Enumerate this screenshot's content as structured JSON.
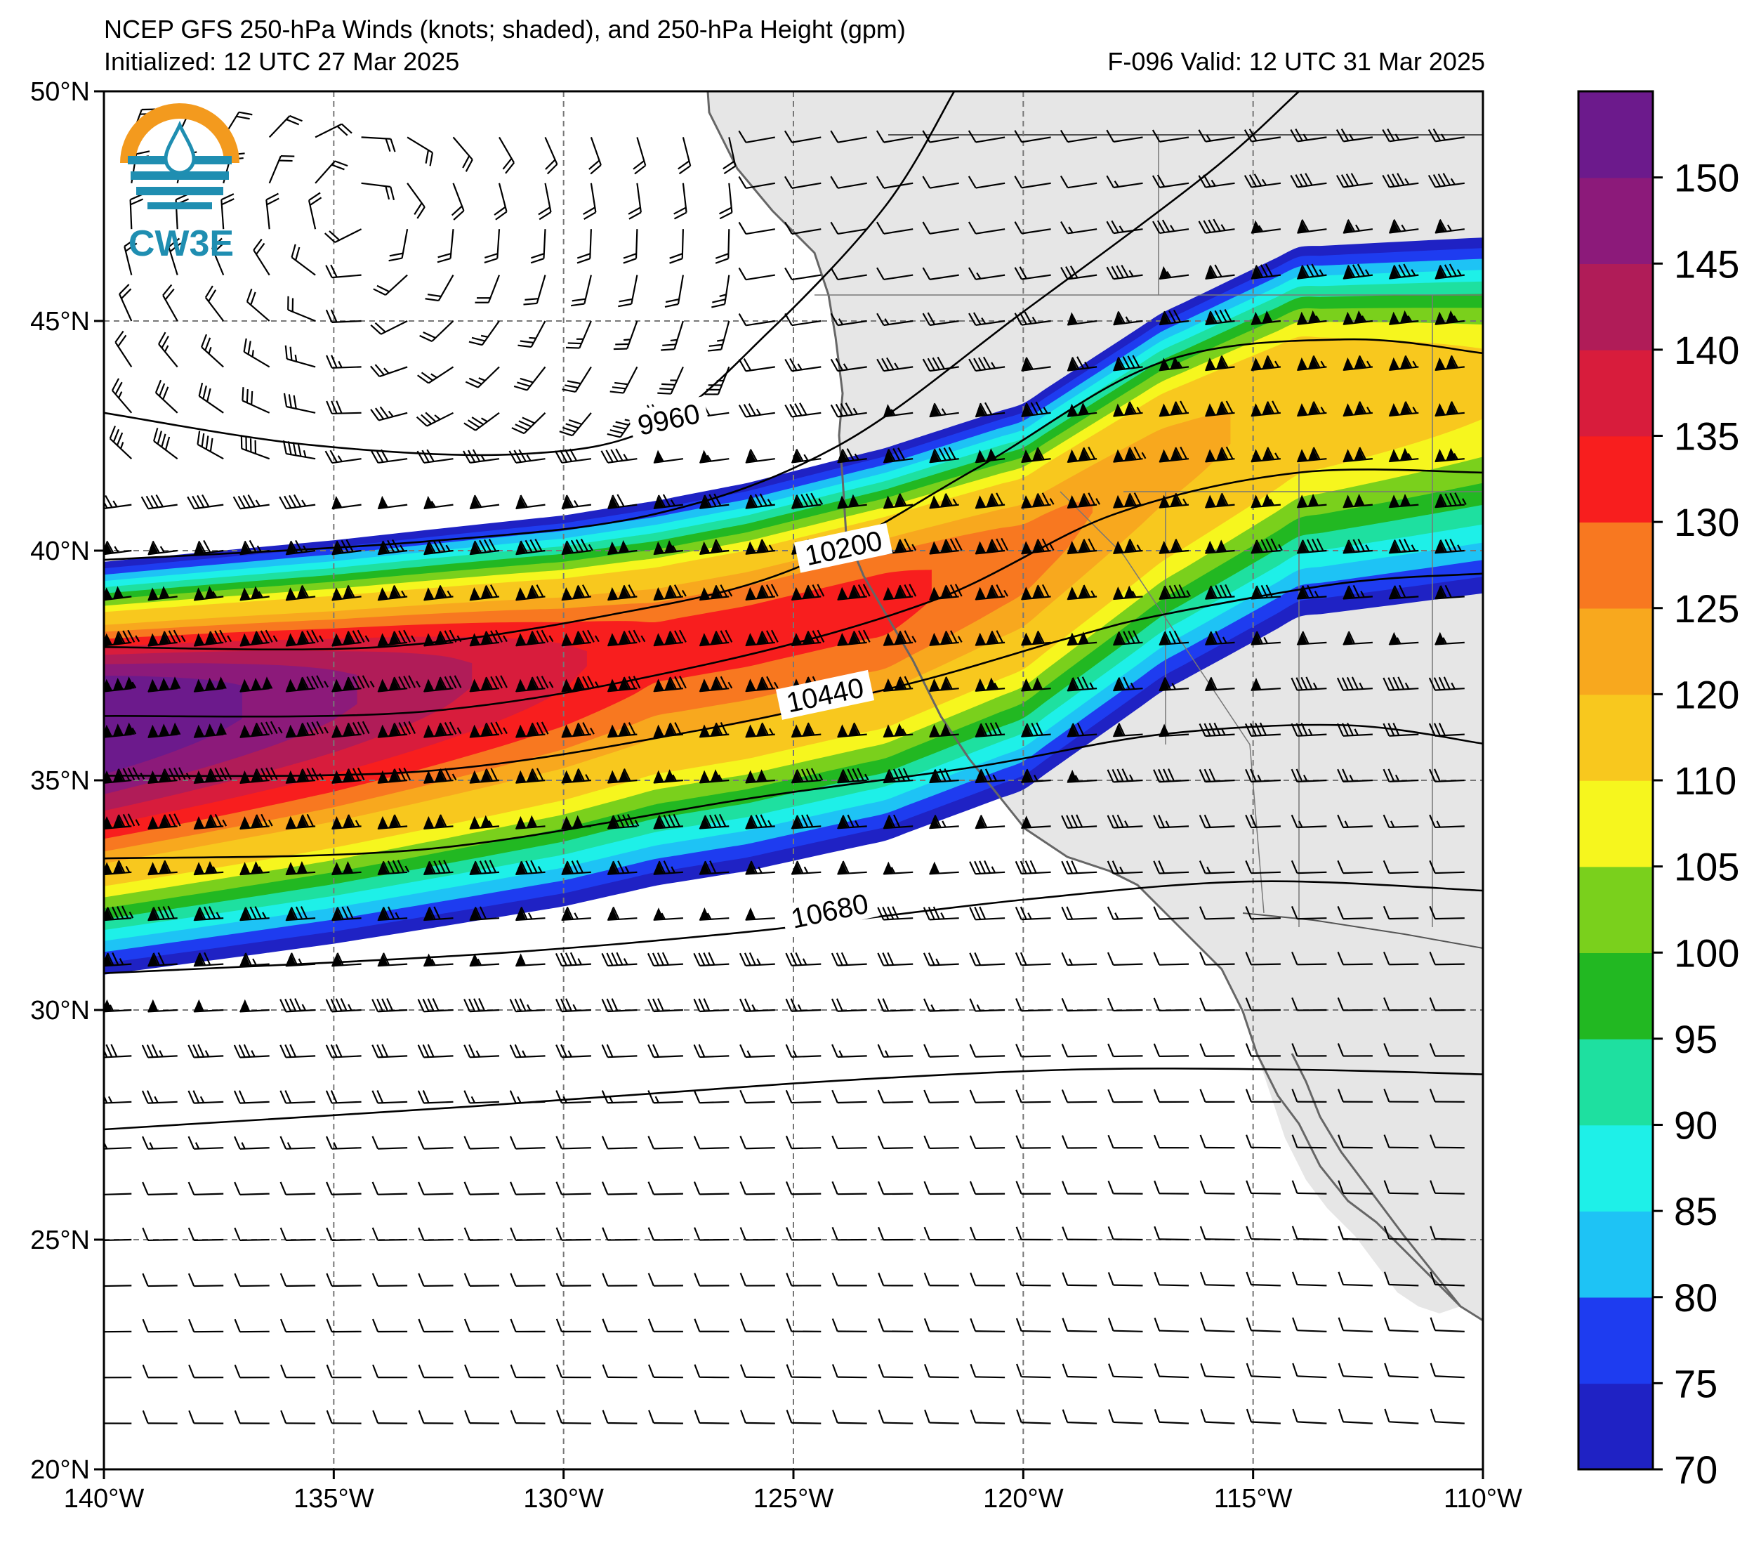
{
  "title": {
    "line1": "NCEP GFS 250-hPa Winds (knots; shaded), and 250-hPa Height (gpm)",
    "initialized": "Initialized: 12 UTC 27 Mar 2025",
    "valid": "F-096  Valid: 12 UTC 31 Mar 2025"
  },
  "logo": {
    "text": "CW3E"
  },
  "map": {
    "lon_range": [
      -140,
      -110
    ],
    "lat_range": [
      20,
      50
    ],
    "lon_ticks": [
      {
        "v": -140,
        "label": "140°W"
      },
      {
        "v": -135,
        "label": "135°W"
      },
      {
        "v": -130,
        "label": "130°W"
      },
      {
        "v": -125,
        "label": "125°W"
      },
      {
        "v": -120,
        "label": "120°W"
      },
      {
        "v": -115,
        "label": "115°W"
      },
      {
        "v": -110,
        "label": "110°W"
      }
    ],
    "lat_ticks": [
      {
        "v": 50,
        "label": "50°N"
      },
      {
        "v": 45,
        "label": "45°N"
      },
      {
        "v": 40,
        "label": "40°N"
      },
      {
        "v": 35,
        "label": "35°N"
      },
      {
        "v": 30,
        "label": "30°N"
      },
      {
        "v": 25,
        "label": "25°N"
      },
      {
        "v": 20,
        "label": "20°N"
      }
    ],
    "grid": "dashed",
    "land_color": "#e6e6e6",
    "jet_axis": [
      {
        "lon": -140,
        "lat": 36.5
      },
      {
        "lon": -135,
        "lat": 37.0
      },
      {
        "lon": -130,
        "lat": 37.6
      },
      {
        "lon": -126,
        "lat": 38.3
      },
      {
        "lon": -123,
        "lat": 39.0
      },
      {
        "lon": -120,
        "lat": 40.0
      },
      {
        "lon": -117,
        "lat": 42.0
      },
      {
        "lon": -114,
        "lat": 43.5
      },
      {
        "lon": -110,
        "lat": 43.8
      }
    ],
    "height_contours": [
      {
        "label": "9960",
        "label_pos": {
          "lon": -127.7,
          "lat": 42.8
        },
        "points": [
          {
            "lon": -140,
            "lat": 43.0
          },
          {
            "lon": -135.5,
            "lat": 42.3
          },
          {
            "lon": -131,
            "lat": 42.1
          },
          {
            "lon": -128,
            "lat": 42.7
          },
          {
            "lon": -125.5,
            "lat": 44.8
          },
          {
            "lon": -123,
            "lat": 47.5
          },
          {
            "lon": -121.5,
            "lat": 50
          }
        ]
      },
      {
        "label": "",
        "points": [
          {
            "lon": -140,
            "lat": 39.8
          },
          {
            "lon": -133,
            "lat": 40.2
          },
          {
            "lon": -128,
            "lat": 40.8
          },
          {
            "lon": -124,
            "lat": 42.3
          },
          {
            "lon": -120,
            "lat": 45.2
          },
          {
            "lon": -116,
            "lat": 48.2
          },
          {
            "lon": -114,
            "lat": 50
          }
        ]
      },
      {
        "label": "10200",
        "label_pos": {
          "lon": -123.9,
          "lat": 40.0
        },
        "points": [
          {
            "lon": -140,
            "lat": 37.9
          },
          {
            "lon": -134,
            "lat": 37.9
          },
          {
            "lon": -129,
            "lat": 38.6
          },
          {
            "lon": -125,
            "lat": 39.6
          },
          {
            "lon": -121,
            "lat": 41.8
          },
          {
            "lon": -117,
            "lat": 44.1
          },
          {
            "lon": -113,
            "lat": 44.6
          },
          {
            "lon": -110,
            "lat": 44.3
          }
        ]
      },
      {
        "label": "",
        "points": [
          {
            "lon": -140,
            "lat": 36.4
          },
          {
            "lon": -133,
            "lat": 36.5
          },
          {
            "lon": -127,
            "lat": 37.5
          },
          {
            "lon": -122,
            "lat": 38.9
          },
          {
            "lon": -118,
            "lat": 40.8
          },
          {
            "lon": -114,
            "lat": 41.7
          },
          {
            "lon": -110,
            "lat": 41.7
          }
        ]
      },
      {
        "label": "10440",
        "label_pos": {
          "lon": -124.3,
          "lat": 36.8
        },
        "points": [
          {
            "lon": -140,
            "lat": 35.1
          },
          {
            "lon": -133,
            "lat": 35.2
          },
          {
            "lon": -127,
            "lat": 36.1
          },
          {
            "lon": -122.5,
            "lat": 37.1
          },
          {
            "lon": -119,
            "lat": 38.1
          },
          {
            "lon": -117,
            "lat": 38.6
          },
          {
            "lon": -113,
            "lat": 39.3
          },
          {
            "lon": -110,
            "lat": 39.5
          }
        ]
      },
      {
        "label": "",
        "points": [
          {
            "lon": -140,
            "lat": 33.3
          },
          {
            "lon": -133,
            "lat": 33.5
          },
          {
            "lon": -126,
            "lat": 34.6
          },
          {
            "lon": -121,
            "lat": 35.3
          },
          {
            "lon": -117,
            "lat": 36.0
          },
          {
            "lon": -113,
            "lat": 36.2
          },
          {
            "lon": -110,
            "lat": 35.8
          }
        ]
      },
      {
        "label": "10680",
        "label_pos": {
          "lon": -124.2,
          "lat": 32.1
        },
        "points": [
          {
            "lon": -140,
            "lat": 30.8
          },
          {
            "lon": -132,
            "lat": 31.2
          },
          {
            "lon": -126,
            "lat": 31.7
          },
          {
            "lon": -120,
            "lat": 32.4
          },
          {
            "lon": -115,
            "lat": 32.8
          },
          {
            "lon": -110,
            "lat": 32.6
          }
        ]
      },
      {
        "label": "",
        "points": [
          {
            "lon": -140,
            "lat": 27.4
          },
          {
            "lon": -132,
            "lat": 27.9
          },
          {
            "lon": -125,
            "lat": 28.4
          },
          {
            "lon": -119,
            "lat": 28.7
          },
          {
            "lon": -114,
            "lat": 28.7
          },
          {
            "lon": -110,
            "lat": 28.6
          }
        ]
      }
    ]
  },
  "colorbar": {
    "levels": [
      70,
      75,
      80,
      85,
      90,
      95,
      100,
      105,
      110,
      120,
      125,
      130,
      135,
      140,
      145,
      150,
      155
    ],
    "labels": [
      "70",
      "75",
      "80",
      "85",
      "90",
      "95",
      "100",
      "105",
      "110",
      "120",
      "125",
      "130",
      "135",
      "140",
      "145",
      "150"
    ],
    "colors": [
      "#1f22c4",
      "#1e3cf0",
      "#1ec3f5",
      "#1ef0e8",
      "#1ee0a0",
      "#22b822",
      "#7ad01c",
      "#f6f61e",
      "#f8c81e",
      "#f8a81e",
      "#f87820",
      "#f81e1e",
      "#d81c3c",
      "#b01c58",
      "#8c1a7a",
      "#6c1a8c"
    ]
  }
}
